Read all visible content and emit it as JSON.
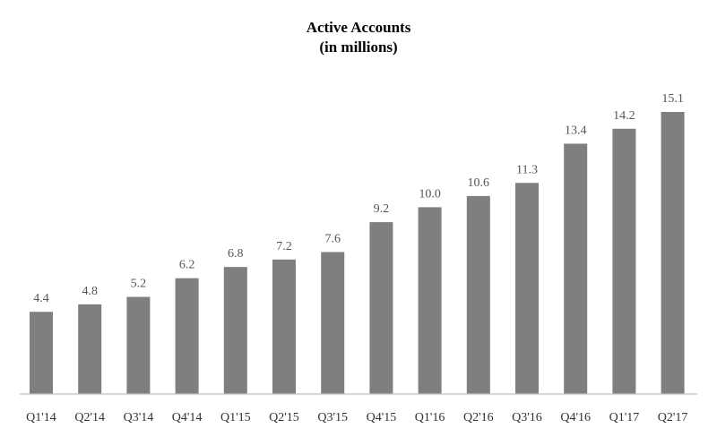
{
  "chart_data": {
    "type": "bar",
    "title": "Active Accounts",
    "subtitle": "(in millions)",
    "categories": [
      "Q1'14",
      "Q2'14",
      "Q3'14",
      "Q4'14",
      "Q1'15",
      "Q2'15",
      "Q3'15",
      "Q4'15",
      "Q1'16",
      "Q2'16",
      "Q3'16",
      "Q4'16",
      "Q1'17",
      "Q2'17"
    ],
    "values": [
      4.4,
      4.8,
      5.2,
      6.2,
      6.8,
      7.2,
      7.6,
      9.2,
      10.0,
      10.6,
      11.3,
      13.4,
      14.2,
      15.1
    ],
    "value_labels": [
      "4.4",
      "4.8",
      "5.2",
      "6.2",
      "6.8",
      "7.2",
      "7.6",
      "9.2",
      "10.0",
      "10.6",
      "11.3",
      "13.4",
      "14.2",
      "15.1"
    ],
    "bar_color": "#7f7f7f",
    "axis_color": "#bfbfbf",
    "xlabel": "",
    "ylabel": "",
    "ylim": [
      0,
      15.1
    ],
    "grid": false,
    "legend": false
  }
}
